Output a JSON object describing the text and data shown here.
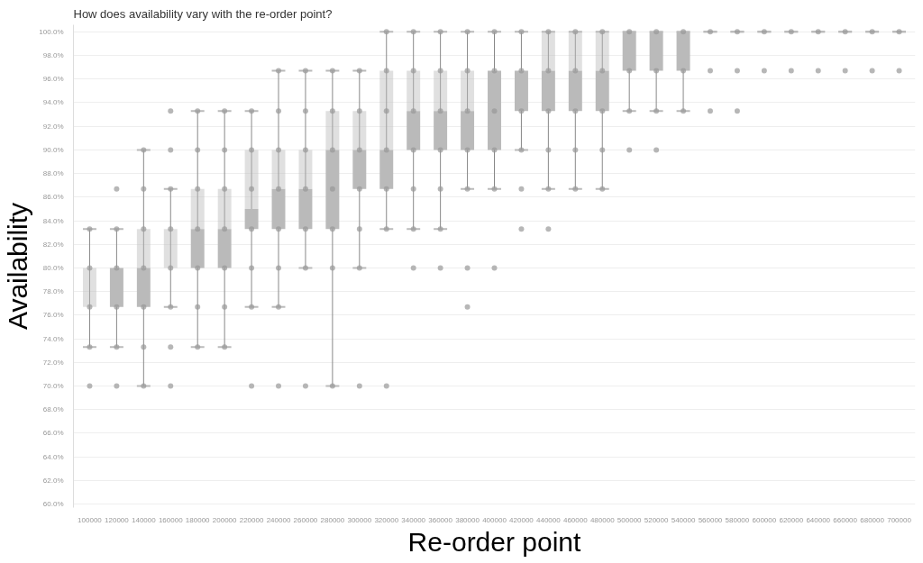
{
  "chart_data": {
    "type": "box",
    "title": "How does availability vary with the re-order point?",
    "xlabel": "Re-order point",
    "ylabel": "Availability",
    "categories": [
      "100000",
      "120000",
      "140000",
      "160000",
      "180000",
      "200000",
      "220000",
      "240000",
      "260000",
      "280000",
      "300000",
      "320000",
      "340000",
      "360000",
      "380000",
      "400000",
      "420000",
      "440000",
      "460000",
      "480000",
      "500000",
      "520000",
      "540000",
      "560000",
      "580000",
      "600000",
      "620000",
      "640000",
      "660000",
      "680000",
      "700000"
    ],
    "ylim": [
      59.7,
      100.6
    ],
    "yticks": [
      {
        "value": 60,
        "label": "60.0%"
      },
      {
        "value": 62,
        "label": "62.0%"
      },
      {
        "value": 64,
        "label": "64.0%"
      },
      {
        "value": 66,
        "label": "66.0%"
      },
      {
        "value": 68,
        "label": "68.0%"
      },
      {
        "value": 70,
        "label": "70.0%"
      },
      {
        "value": 72,
        "label": "72.0%"
      },
      {
        "value": 74,
        "label": "74.0%"
      },
      {
        "value": 76,
        "label": "76.0%"
      },
      {
        "value": 78,
        "label": "78.0%"
      },
      {
        "value": 80,
        "label": "80.0%"
      },
      {
        "value": 82,
        "label": "82.0%"
      },
      {
        "value": 84,
        "label": "84.0%"
      },
      {
        "value": 86,
        "label": "86.0%"
      },
      {
        "value": 88,
        "label": "88.0%"
      },
      {
        "value": 90,
        "label": "90.0%"
      },
      {
        "value": 92,
        "label": "92.0%"
      },
      {
        "value": 94,
        "label": "94.0%"
      },
      {
        "value": 96,
        "label": "96.0%"
      },
      {
        "value": 98,
        "label": "98.0%"
      },
      {
        "value": 100,
        "label": "100.0%"
      }
    ],
    "grid": "y",
    "series": [
      {
        "color": "#bababa",
        "boxes": [
          {
            "low": 73.3,
            "q1": 76.7,
            "median": 76.7,
            "q3": 80,
            "high": 83.3
          },
          {
            "low": 73.3,
            "q1": 76.7,
            "median": 80,
            "q3": 80,
            "high": 83.3
          },
          {
            "low": 70,
            "q1": 76.7,
            "median": 80,
            "q3": 83.3,
            "high": 90
          },
          {
            "low": 76.7,
            "q1": 80,
            "median": 80,
            "q3": 83.3,
            "high": 86.7
          },
          {
            "low": 73.3,
            "q1": 80,
            "median": 83.3,
            "q3": 86.7,
            "high": 93.3
          },
          {
            "low": 73.3,
            "q1": 80,
            "median": 83.3,
            "q3": 86.7,
            "high": 93.3
          },
          {
            "low": 76.7,
            "q1": 83.3,
            "median": 85,
            "q3": 90,
            "high": 93.3
          },
          {
            "low": 76.7,
            "q1": 83.3,
            "median": 86.7,
            "q3": 90,
            "high": 96.7
          },
          {
            "low": 80,
            "q1": 83.3,
            "median": 86.7,
            "q3": 90,
            "high": 96.7
          },
          {
            "low": 70,
            "q1": 83.3,
            "median": 90,
            "q3": 93.3,
            "high": 96.7
          },
          {
            "low": 80,
            "q1": 86.7,
            "median": 90,
            "q3": 93.3,
            "high": 96.7
          },
          {
            "low": 83.3,
            "q1": 86.7,
            "median": 90,
            "q3": 96.7,
            "high": 100
          },
          {
            "low": 83.3,
            "q1": 90,
            "median": 93.3,
            "q3": 96.7,
            "high": 100
          },
          {
            "low": 83.3,
            "q1": 90,
            "median": 93.3,
            "q3": 96.7,
            "high": 100
          },
          {
            "low": 86.7,
            "q1": 90,
            "median": 93.3,
            "q3": 96.7,
            "high": 100
          },
          {
            "low": 86.7,
            "q1": 90,
            "median": 96.7,
            "q3": 96.7,
            "high": 100
          },
          {
            "low": 90,
            "q1": 93.3,
            "median": 96.7,
            "q3": 96.7,
            "high": 100
          },
          {
            "low": 86.7,
            "q1": 93.3,
            "median": 96.7,
            "q3": 100,
            "high": 100
          },
          {
            "low": 86.7,
            "q1": 93.3,
            "median": 96.7,
            "q3": 100,
            "high": 100
          },
          {
            "low": 86.7,
            "q1": 93.3,
            "median": 96.7,
            "q3": 100,
            "high": 100
          },
          {
            "low": 93.3,
            "q1": 96.7,
            "median": 100,
            "q3": 100,
            "high": 100
          },
          {
            "low": 93.3,
            "q1": 96.7,
            "median": 100,
            "q3": 100,
            "high": 100
          },
          {
            "low": 93.3,
            "q1": 96.7,
            "median": 100,
            "q3": 100,
            "high": 100
          },
          {
            "low": 100,
            "q1": 100,
            "median": 100,
            "q3": 100,
            "high": 100
          },
          {
            "low": 100,
            "q1": 100,
            "median": 100,
            "q3": 100,
            "high": 100
          },
          {
            "low": 100,
            "q1": 100,
            "median": 100,
            "q3": 100,
            "high": 100
          },
          {
            "low": 100,
            "q1": 100,
            "median": 100,
            "q3": 100,
            "high": 100
          },
          {
            "low": 100,
            "q1": 100,
            "median": 100,
            "q3": 100,
            "high": 100
          },
          {
            "low": 100,
            "q1": 100,
            "median": 100,
            "q3": 100,
            "high": 100
          },
          {
            "low": 100,
            "q1": 100,
            "median": 100,
            "q3": 100,
            "high": 100
          },
          {
            "low": 100,
            "q1": 100,
            "median": 100,
            "q3": 100,
            "high": 100
          }
        ]
      },
      {
        "type": "scatter",
        "color": "#999999",
        "marker": "circle",
        "x": [
          "100000",
          "100000",
          "100000",
          "100000",
          "100000",
          "120000",
          "120000",
          "120000",
          "120000",
          "120000",
          "120000",
          "140000",
          "140000",
          "140000",
          "140000",
          "140000",
          "140000",
          "140000",
          "160000",
          "160000",
          "160000",
          "160000",
          "160000",
          "160000",
          "160000",
          "160000",
          "180000",
          "180000",
          "180000",
          "180000",
          "180000",
          "180000",
          "180000",
          "200000",
          "200000",
          "200000",
          "200000",
          "200000",
          "200000",
          "200000",
          "220000",
          "220000",
          "220000",
          "220000",
          "220000",
          "220000",
          "220000",
          "240000",
          "240000",
          "240000",
          "240000",
          "240000",
          "240000",
          "240000",
          "240000",
          "260000",
          "260000",
          "260000",
          "260000",
          "260000",
          "260000",
          "260000",
          "280000",
          "280000",
          "280000",
          "280000",
          "280000",
          "280000",
          "280000",
          "300000",
          "300000",
          "300000",
          "300000",
          "300000",
          "300000",
          "300000",
          "320000",
          "320000",
          "320000",
          "320000",
          "320000",
          "320000",
          "320000",
          "340000",
          "340000",
          "340000",
          "340000",
          "340000",
          "340000",
          "340000",
          "360000",
          "360000",
          "360000",
          "360000",
          "360000",
          "360000",
          "360000",
          "380000",
          "380000",
          "380000",
          "380000",
          "380000",
          "380000",
          "380000",
          "400000",
          "400000",
          "400000",
          "400000",
          "400000",
          "400000",
          "420000",
          "420000",
          "420000",
          "420000",
          "420000",
          "420000",
          "440000",
          "440000",
          "440000",
          "440000",
          "440000",
          "440000",
          "460000",
          "460000",
          "460000",
          "460000",
          "460000",
          "480000",
          "480000",
          "480000",
          "480000",
          "480000",
          "500000",
          "500000",
          "500000",
          "500000",
          "520000",
          "520000",
          "520000",
          "520000",
          "540000",
          "540000",
          "540000",
          "560000",
          "560000",
          "560000",
          "580000",
          "580000",
          "580000",
          "600000",
          "600000",
          "620000",
          "620000",
          "640000",
          "640000",
          "660000",
          "660000",
          "680000",
          "680000",
          "700000",
          "700000"
        ],
        "values": [
          70,
          73.3,
          76.7,
          80,
          83.3,
          70,
          73.3,
          76.7,
          80,
          83.3,
          86.7,
          70,
          73.3,
          76.7,
          80,
          83.3,
          86.7,
          90,
          70,
          73.3,
          76.7,
          80,
          83.3,
          86.7,
          90,
          93.3,
          73.3,
          76.7,
          80,
          83.3,
          86.7,
          90,
          93.3,
          73.3,
          76.7,
          80,
          83.3,
          86.7,
          90,
          93.3,
          70,
          76.7,
          80,
          83.3,
          86.7,
          90,
          93.3,
          70,
          76.7,
          80,
          83.3,
          86.7,
          90,
          93.3,
          96.7,
          70,
          80,
          83.3,
          86.7,
          90,
          93.3,
          96.7,
          70,
          80,
          83.3,
          86.7,
          90,
          93.3,
          96.7,
          70,
          80,
          83.3,
          86.7,
          90,
          93.3,
          96.7,
          70,
          83.3,
          86.7,
          90,
          93.3,
          96.7,
          100,
          80,
          83.3,
          86.7,
          90,
          93.3,
          96.7,
          100,
          80,
          83.3,
          86.7,
          90,
          93.3,
          96.7,
          100,
          76.7,
          80,
          86.7,
          90,
          93.3,
          96.7,
          100,
          80,
          86.7,
          90,
          93.3,
          96.7,
          100,
          83.3,
          86.7,
          90,
          93.3,
          96.7,
          100,
          83.3,
          86.7,
          90,
          93.3,
          96.7,
          100,
          86.7,
          90,
          93.3,
          96.7,
          100,
          86.7,
          90,
          93.3,
          96.7,
          100,
          90,
          93.3,
          96.7,
          100,
          90,
          93.3,
          96.7,
          100,
          93.3,
          96.7,
          100,
          93.3,
          96.7,
          100,
          93.3,
          96.7,
          100,
          96.7,
          100,
          96.7,
          100,
          96.7,
          100,
          96.7,
          100,
          96.7,
          100,
          96.7,
          100
        ]
      }
    ]
  }
}
